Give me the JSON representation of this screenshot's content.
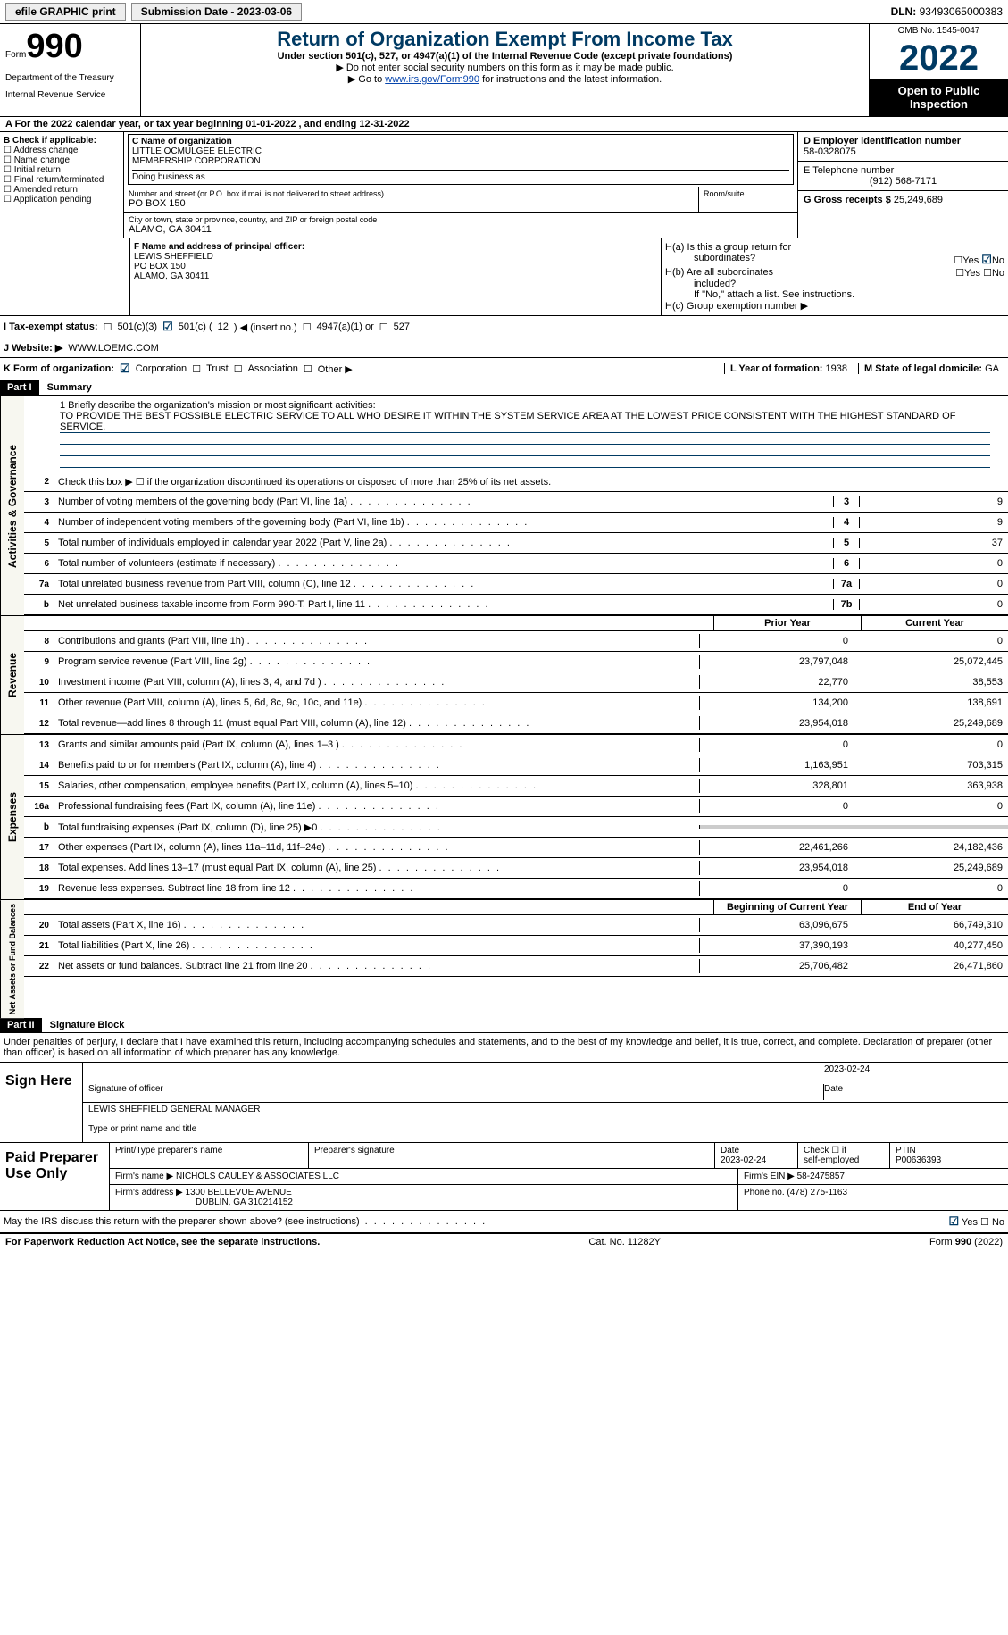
{
  "topbar": {
    "efile": "efile GRAPHIC print",
    "submission_label": "Submission Date - ",
    "submission_date": "2023-03-06",
    "dln_label": "DLN: ",
    "dln": "93493065000383"
  },
  "header": {
    "form_word": "Form",
    "form_number": "990",
    "title": "Return of Organization Exempt From Income Tax",
    "subtitle": "Under section 501(c), 527, or 4947(a)(1) of the Internal Revenue Code (except private foundations)",
    "instr1": "▶ Do not enter social security numbers on this form as it may be made public.",
    "instr2_a": "▶ Go to ",
    "instr2_link": "www.irs.gov/Form990",
    "instr2_b": " for instructions and the latest information.",
    "omb": "OMB No. 1545-0047",
    "year": "2022",
    "inspection_a": "Open to Public",
    "inspection_b": "Inspection",
    "dept": "Department of the Treasury",
    "irs": "Internal Revenue Service"
  },
  "line_a": "A For the 2022 calendar year, or tax year beginning 01-01-2022   , and ending 12-31-2022",
  "section_b": {
    "label": "B Check if applicable:",
    "opts": [
      "Address change",
      "Name change",
      "Initial return",
      "Final return/terminated",
      "Amended return",
      "Application pending"
    ]
  },
  "section_c": {
    "name_label": "C Name of organization",
    "name1": "LITTLE OCMULGEE ELECTRIC",
    "name2": "MEMBERSHIP CORPORATION",
    "dba": "Doing business as",
    "addr_label": "Number and street (or P.O. box if mail is not delivered to street address)",
    "room_label": "Room/suite",
    "addr": "PO BOX 150",
    "city_label": "City or town, state or province, country, and ZIP or foreign postal code",
    "city": "ALAMO, GA   30411"
  },
  "section_d": {
    "d_label": "D Employer identification number",
    "ein": "58-0328075",
    "e_label": "E Telephone number",
    "phone": "(912) 568-7171",
    "g_label": "G Gross receipts $ ",
    "gross": "25,249,689"
  },
  "section_f": {
    "label": "F  Name and address of principal officer:",
    "name": "LEWIS SHEFFIELD",
    "addr1": "PO BOX 150",
    "addr2": "ALAMO, GA  30411"
  },
  "section_h": {
    "ha1": "H(a)  Is this a group return for",
    "ha2": "subordinates?",
    "hb1": "H(b)  Are all subordinates",
    "hb2": "included?",
    "hb_note": "If \"No,\" attach a list. See instructions.",
    "hc": "H(c)  Group exemption number ▶",
    "yes": "Yes",
    "no": "No"
  },
  "status": {
    "label": "I  Tax-exempt status:",
    "o1": "501(c)(3)",
    "o2a": "501(c) ( ",
    "o2b": "12",
    "o2c": " ) ◀ (insert no.)",
    "o3": "4947(a)(1) or",
    "o4": "527"
  },
  "website": {
    "label": "J  Website: ▶",
    "value": "WWW.LOEMC.COM"
  },
  "k_row": {
    "label": "K Form of organization:",
    "o1": "Corporation",
    "o2": "Trust",
    "o3": "Association",
    "o4": "Other ▶",
    "l_label": "L Year of formation: ",
    "l_val": "1938",
    "m_label": "M State of legal domicile: ",
    "m_val": "GA"
  },
  "part1": {
    "label": "Part I",
    "title": "Summary"
  },
  "mission": {
    "intro": "1   Briefly describe the organization's mission or most significant activities:",
    "text": "TO PROVIDE THE BEST POSSIBLE ELECTRIC SERVICE TO ALL WHO DESIRE IT WITHIN THE SYSTEM SERVICE AREA AT THE LOWEST PRICE CONSISTENT WITH THE HIGHEST STANDARD OF SERVICE."
  },
  "gov_rows": [
    {
      "n": "2",
      "d": "Check this box ▶ ☐  if the organization discontinued its operations or disposed of more than 25% of its net assets.",
      "box": "",
      "val": ""
    },
    {
      "n": "3",
      "d": "Number of voting members of the governing body (Part VI, line 1a)",
      "box": "3",
      "val": "9"
    },
    {
      "n": "4",
      "d": "Number of independent voting members of the governing body (Part VI, line 1b)",
      "box": "4",
      "val": "9"
    },
    {
      "n": "5",
      "d": "Total number of individuals employed in calendar year 2022 (Part V, line 2a)",
      "box": "5",
      "val": "37"
    },
    {
      "n": "6",
      "d": "Total number of volunteers (estimate if necessary)",
      "box": "6",
      "val": "0"
    },
    {
      "n": "7a",
      "d": "Total unrelated business revenue from Part VIII, column (C), line 12",
      "box": "7a",
      "val": "0"
    },
    {
      "n": "b",
      "d": "Net unrelated business taxable income from Form 990-T, Part I, line 11",
      "box": "7b",
      "val": "0"
    }
  ],
  "headers_pc": {
    "blank": "",
    "p": "Prior Year",
    "c": "Current Year"
  },
  "headers_net": {
    "blank": "",
    "p": "Beginning of Current Year",
    "c": "End of Year"
  },
  "rev_rows": [
    {
      "n": "8",
      "d": "Contributions and grants (Part VIII, line 1h)",
      "p": "0",
      "c": "0"
    },
    {
      "n": "9",
      "d": "Program service revenue (Part VIII, line 2g)",
      "p": "23,797,048",
      "c": "25,072,445"
    },
    {
      "n": "10",
      "d": "Investment income (Part VIII, column (A), lines 3, 4, and 7d )",
      "p": "22,770",
      "c": "38,553"
    },
    {
      "n": "11",
      "d": "Other revenue (Part VIII, column (A), lines 5, 6d, 8c, 9c, 10c, and 11e)",
      "p": "134,200",
      "c": "138,691"
    },
    {
      "n": "12",
      "d": "Total revenue—add lines 8 through 11 (must equal Part VIII, column (A), line 12)",
      "p": "23,954,018",
      "c": "25,249,689"
    }
  ],
  "exp_rows": [
    {
      "n": "13",
      "d": "Grants and similar amounts paid (Part IX, column (A), lines 1–3 )",
      "p": "0",
      "c": "0"
    },
    {
      "n": "14",
      "d": "Benefits paid to or for members (Part IX, column (A), line 4)",
      "p": "1,163,951",
      "c": "703,315"
    },
    {
      "n": "15",
      "d": "Salaries, other compensation, employee benefits (Part IX, column (A), lines 5–10)",
      "p": "328,801",
      "c": "363,938"
    },
    {
      "n": "16a",
      "d": "Professional fundraising fees (Part IX, column (A), line 11e)",
      "p": "0",
      "c": "0"
    },
    {
      "n": "b",
      "d": "Total fundraising expenses (Part IX, column (D), line 25) ▶0",
      "p": "shaded",
      "c": "shaded"
    },
    {
      "n": "17",
      "d": "Other expenses (Part IX, column (A), lines 11a–11d, 11f–24e)",
      "p": "22,461,266",
      "c": "24,182,436"
    },
    {
      "n": "18",
      "d": "Total expenses. Add lines 13–17 (must equal Part IX, column (A), line 25)",
      "p": "23,954,018",
      "c": "25,249,689"
    },
    {
      "n": "19",
      "d": "Revenue less expenses. Subtract line 18 from line 12",
      "p": "0",
      "c": "0"
    }
  ],
  "net_rows": [
    {
      "n": "20",
      "d": "Total assets (Part X, line 16)",
      "p": "63,096,675",
      "c": "66,749,310"
    },
    {
      "n": "21",
      "d": "Total liabilities (Part X, line 26)",
      "p": "37,390,193",
      "c": "40,277,450"
    },
    {
      "n": "22",
      "d": "Net assets or fund balances. Subtract line 21 from line 20",
      "p": "25,706,482",
      "c": "26,471,860"
    }
  ],
  "part2": {
    "label": "Part II",
    "title": "Signature Block",
    "declaration": "Under penalties of perjury, I declare that I have examined this return, including accompanying schedules and statements, and to the best of my knowledge and belief, it is true, correct, and complete. Declaration of preparer (other than officer) is based on all information of which preparer has any knowledge."
  },
  "sign": {
    "left": "Sign Here",
    "sig_label": "Signature of officer",
    "date_label": "Date",
    "date": "2023-02-24",
    "name": "LEWIS SHEFFIELD  GENERAL MANAGER",
    "name_label": "Type or print name and title"
  },
  "paid": {
    "left": "Paid Preparer Use Only",
    "h1": "Print/Type preparer's name",
    "h2": "Preparer's signature",
    "h3_a": "Date",
    "h3_b": "2023-02-24",
    "h4_a": "Check ☐ if",
    "h4_b": "self-employed",
    "h5_a": "PTIN",
    "h5_b": "P00636393",
    "firm_name_label": "Firm's name    ▶ ",
    "firm_name": "NICHOLS CAULEY & ASSOCIATES LLC",
    "firm_ein_label": "Firm's EIN ▶ ",
    "firm_ein": "58-2475857",
    "firm_addr_label": "Firm's address ▶ ",
    "firm_addr1": "1300 BELLEVUE AVENUE",
    "firm_addr2": "DUBLIN, GA  310214152",
    "phone_label": "Phone no. ",
    "phone": "(478) 275-1163"
  },
  "may_irs": {
    "text": "May the IRS discuss this return with the preparer shown above? (see instructions)",
    "yes": "Yes",
    "no": "No"
  },
  "footer": {
    "left": "For Paperwork Reduction Act Notice, see the separate instructions.",
    "mid": "Cat. No. 11282Y",
    "right": "Form 990 (2022)"
  },
  "side_labels": {
    "gov": "Activities & Governance",
    "rev": "Revenue",
    "exp": "Expenses",
    "net": "Net Assets or Fund Balances"
  }
}
